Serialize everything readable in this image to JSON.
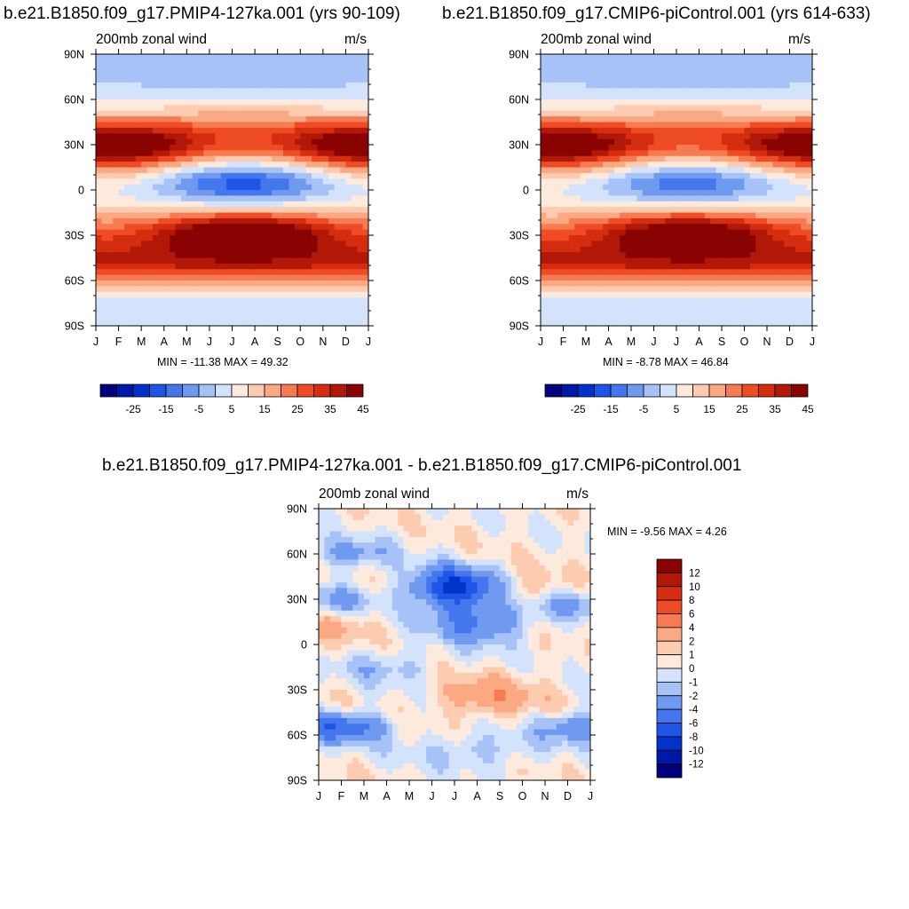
{
  "colors": {
    "ramp13": [
      "#00007f",
      "#0018a8",
      "#0033cc",
      "#1f55e6",
      "#4477ee",
      "#7099f0",
      "#a7c2f7",
      "#d3e3fb",
      "#feeadc",
      "#fdcbb0",
      "#fba983",
      "#f77b52",
      "#ef4b24",
      "#d52d10",
      "#b11807",
      "#8a0303"
    ],
    "diff13": [
      "#00007f",
      "#0018a8",
      "#0033cc",
      "#1f55e6",
      "#4477ee",
      "#7099f0",
      "#a7c2f7",
      "#d3e3fb",
      "#feeadc",
      "#fdcbb0",
      "#fba983",
      "#f77b52",
      "#ef4b24",
      "#d52d10",
      "#b11807",
      "#8a0303"
    ]
  },
  "panels": {
    "p1": {
      "title": "b.e21.B1850.f09_g17.PMIP4-127ka.001 (yrs 90-109)",
      "left": "200mb zonal wind",
      "right": "m/s",
      "stats": "MIN = -11.38 MAX =  49.32"
    },
    "p2": {
      "title": "b.e21.B1850.f09_g17.CMIP6-piControl.001 (yrs 614-633)",
      "left": "200mb zonal wind",
      "right": "m/s",
      "stats": "MIN =  -8.78 MAX =  46.84"
    },
    "p3": {
      "title": "b.e21.B1850.f09_g17.PMIP4-127ka.001 - b.e21.B1850.f09_g17.CMIP6-piControl.001",
      "left": "200mb zonal wind",
      "right": "m/s",
      "stats": "MIN =  -9.56 MAX =   4.26"
    }
  },
  "chart_data": [
    {
      "type": "heatmap",
      "title": "b.e21.B1850.f09_g17.PMIP4-127ka.001 (yrs 90-109)",
      "left_string": "200mb zonal wind",
      "units": "m/s",
      "x_ticks": [
        "J",
        "F",
        "M",
        "A",
        "M",
        "J",
        "J",
        "A",
        "S",
        "O",
        "N",
        "D",
        "J"
      ],
      "y_ticks": [
        "90N",
        "60N",
        "30N",
        "0",
        "30S",
        "60S",
        "90S"
      ],
      "y_values": [
        90,
        60,
        30,
        0,
        -30,
        -60,
        -90
      ],
      "xlim": [
        0,
        12
      ],
      "ylim": [
        -90,
        90
      ],
      "stats": "MIN = -11.38 MAX =  49.32",
      "levels": [
        -30,
        -25,
        -20,
        -15,
        -10,
        -5,
        0,
        5,
        10,
        15,
        20,
        25,
        30,
        35,
        40,
        45
      ],
      "colorbar_labels": [
        "-25",
        "-15",
        "-5",
        "5",
        "15",
        "25",
        "35",
        "45"
      ],
      "features": [
        {
          "lat": 30,
          "month": 0.5,
          "value": 45
        },
        {
          "lat": 30,
          "month": 11.5,
          "value": 40
        },
        {
          "lat": 5,
          "month": 7,
          "value": -11
        },
        {
          "lat": -28,
          "month": 6.5,
          "value": 49
        },
        {
          "lat": -50,
          "month": 1,
          "value": 35
        }
      ]
    },
    {
      "type": "heatmap",
      "title": "b.e21.B1850.f09_g17.CMIP6-piControl.001 (yrs 614-633)",
      "left_string": "200mb zonal wind",
      "units": "m/s",
      "x_ticks": [
        "J",
        "F",
        "M",
        "A",
        "M",
        "J",
        "J",
        "A",
        "S",
        "O",
        "N",
        "D",
        "J"
      ],
      "y_ticks": [
        "90N",
        "60N",
        "30N",
        "0",
        "30S",
        "60S",
        "90S"
      ],
      "y_values": [
        90,
        60,
        30,
        0,
        -30,
        -60,
        -90
      ],
      "xlim": [
        0,
        12
      ],
      "ylim": [
        -90,
        90
      ],
      "stats": "MIN =  -8.78 MAX =  46.84",
      "levels": [
        -30,
        -25,
        -20,
        -15,
        -10,
        -5,
        0,
        5,
        10,
        15,
        20,
        25,
        30,
        35,
        40,
        45
      ],
      "colorbar_labels": [
        "-25",
        "-15",
        "-5",
        "5",
        "15",
        "25",
        "35",
        "45"
      ],
      "features": [
        {
          "lat": 30,
          "month": 0.5,
          "value": 45
        },
        {
          "lat": 30,
          "month": 11.5,
          "value": 40
        },
        {
          "lat": 8,
          "month": 7,
          "value": -8
        },
        {
          "lat": -28,
          "month": 6,
          "value": 46
        },
        {
          "lat": -50,
          "month": 1,
          "value": 35
        }
      ]
    },
    {
      "type": "heatmap",
      "title": "b.e21.B1850.f09_g17.PMIP4-127ka.001 - b.e21.B1850.f09_g17.CMIP6-piControl.001",
      "left_string": "200mb zonal wind",
      "units": "m/s",
      "x_ticks": [
        "J",
        "F",
        "M",
        "A",
        "M",
        "J",
        "J",
        "A",
        "S",
        "O",
        "N",
        "D",
        "J"
      ],
      "y_ticks": [
        "90N",
        "60N",
        "30N",
        "0",
        "30S",
        "60S",
        "90S"
      ],
      "y_values": [
        90,
        60,
        30,
        0,
        -30,
        -60,
        -90
      ],
      "xlim": [
        0,
        12
      ],
      "ylim": [
        -90,
        90
      ],
      "stats": "MIN =  -9.56 MAX =   4.26",
      "levels": [
        -12,
        -10,
        -8,
        -6,
        -4,
        -2,
        -1,
        0,
        1,
        2,
        4,
        6,
        8,
        10,
        12
      ],
      "colorbar_labels": [
        "12",
        "10",
        "8",
        "6",
        "4",
        "2",
        "1",
        "0",
        "-1",
        "-2",
        "-4",
        "-6",
        "-8",
        "-10",
        "-12"
      ],
      "features": [
        {
          "lat": 38,
          "month": 6,
          "value": -9
        },
        {
          "lat": -55,
          "month": 1,
          "value": -7
        },
        {
          "lat": -35,
          "month": 7.5,
          "value": 3
        },
        {
          "lat": 15,
          "month": 1,
          "value": 2
        },
        {
          "lat": 35,
          "month": 9.5,
          "value": 2
        }
      ]
    }
  ]
}
